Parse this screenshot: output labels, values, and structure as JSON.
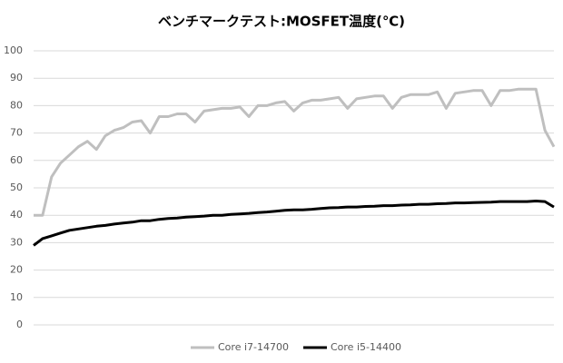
{
  "chart_data": {
    "type": "line",
    "title": "ベンチマークテスト:MOSFET温度(℃)",
    "categories": [
      null,
      null,
      null,
      null,
      null,
      null,
      null,
      null,
      null,
      null,
      null,
      null,
      null,
      null,
      null,
      null,
      null,
      null,
      null,
      null,
      null,
      null,
      null,
      null,
      null,
      null,
      null,
      null,
      null,
      null,
      null,
      null,
      null,
      null,
      null,
      null,
      null,
      null,
      null,
      null,
      null,
      null,
      null,
      null,
      null,
      null,
      null,
      null,
      null,
      null,
      null,
      null,
      null,
      null,
      null,
      null,
      null,
      null,
      null
    ],
    "series": [
      {
        "name": "Core i7-14700",
        "color": "#bfbfbf",
        "values": [
          40,
          40,
          54,
          59,
          62,
          65,
          67,
          64,
          69,
          71,
          72,
          74,
          74.5,
          70,
          76,
          76,
          77,
          77,
          74,
          78,
          78.5,
          79,
          79,
          79.5,
          76,
          80,
          80,
          81,
          81.5,
          78,
          81,
          82,
          82,
          82.5,
          83,
          79,
          82.5,
          83,
          83.5,
          83.5,
          79,
          83,
          84,
          84,
          84,
          85,
          79,
          84.5,
          85,
          85.5,
          85.5,
          80,
          85.5,
          85.5,
          86,
          86,
          86,
          71,
          65
        ]
      },
      {
        "name": "Core i5-14400",
        "color": "#000000",
        "values": [
          29,
          31.5,
          32.5,
          33.5,
          34.5,
          35,
          35.5,
          36,
          36.3,
          36.8,
          37.2,
          37.5,
          38,
          38,
          38.5,
          38.8,
          39,
          39.3,
          39.5,
          39.7,
          40,
          40,
          40.3,
          40.5,
          40.7,
          41,
          41.2,
          41.5,
          41.8,
          42,
          42,
          42.2,
          42.5,
          42.7,
          42.8,
          43,
          43,
          43.2,
          43.3,
          43.5,
          43.5,
          43.7,
          43.8,
          44,
          44,
          44.2,
          44.3,
          44.5,
          44.5,
          44.6,
          44.7,
          44.8,
          45,
          45,
          45,
          45,
          45.2,
          45,
          43
        ]
      }
    ],
    "ylim": [
      0,
      100
    ],
    "yticks": [
      0,
      10,
      20,
      30,
      40,
      50,
      60,
      70,
      80,
      90,
      100
    ],
    "grid": true,
    "legend": "bottom"
  }
}
